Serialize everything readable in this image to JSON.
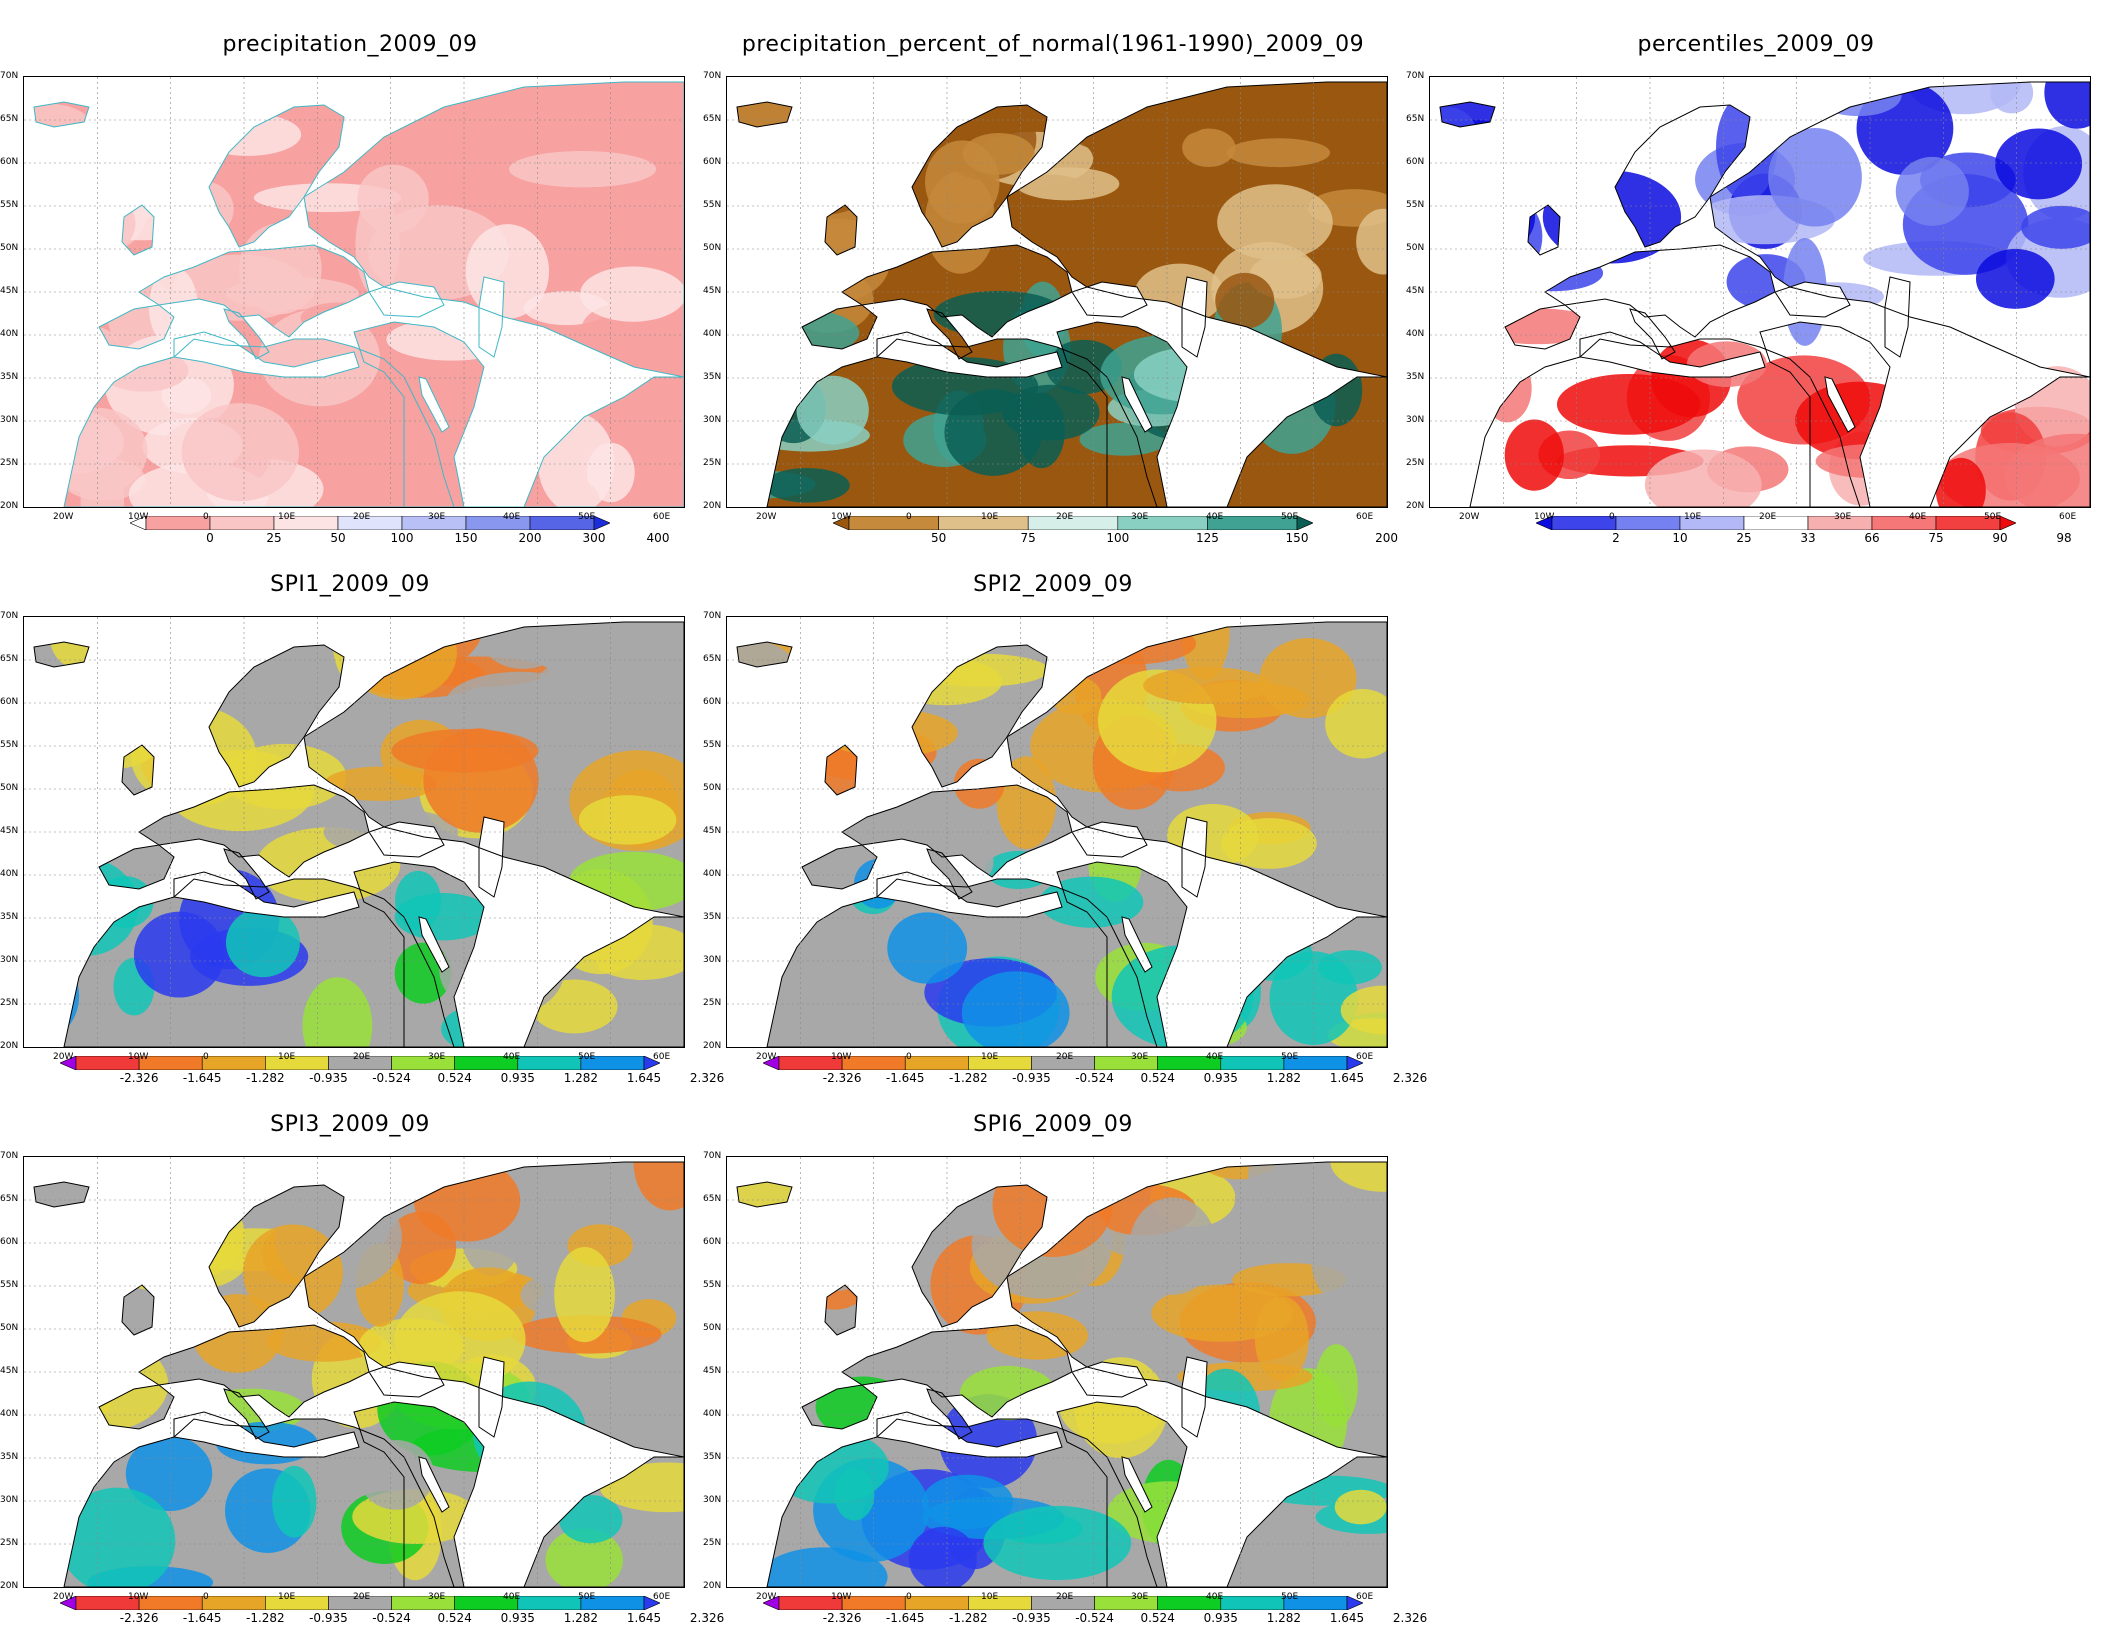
{
  "panels": [
    {
      "id": "precip",
      "title": "precipitation_2009_09",
      "scheme": "precip",
      "colorbar": {
        "labels": [
          "0",
          "25",
          "50",
          "100",
          "150",
          "200",
          "300",
          "400"
        ],
        "colors": [
          "#ffffff",
          "#f7a1a1",
          "#f9c5c5",
          "#fde4e4",
          "#dfe3fb",
          "#b8c0f5",
          "#8a97ee",
          "#5565e6",
          "#1c2ddc"
        ],
        "end_arrow": "right"
      }
    },
    {
      "id": "percent",
      "title": "precipitation_percent_of_normal(1961-1990)_2009_09",
      "scheme": "percent",
      "colorbar": {
        "labels": [
          "50",
          "75",
          "100",
          "125",
          "150",
          "200"
        ],
        "colors": [
          "#995710",
          "#c58a3c",
          "#dfc08a",
          "#d7efe9",
          "#8ad0c2",
          "#3fa292",
          "#0b5e53"
        ],
        "end_arrow": "both"
      }
    },
    {
      "id": "percentiles",
      "title": "percentiles_2009_09",
      "scheme": "pct",
      "colorbar": {
        "labels": [
          "2",
          "10",
          "25",
          "33",
          "66",
          "75",
          "90",
          "98"
        ],
        "colors": [
          "#0b0cdf",
          "#3c44ea",
          "#7581f0",
          "#b3b9f6",
          "#ffffff",
          "#f7b0b0",
          "#f57777",
          "#f23f3f",
          "#ee0b0b"
        ],
        "end_arrow": "both"
      }
    },
    {
      "id": "spi1",
      "title": "SPI1_2009_09",
      "scheme": "spi",
      "colorbar": {
        "labels": [
          "-2.326",
          "-1.645",
          "-1.282",
          "-0.935",
          "-0.524",
          "0.524",
          "0.935",
          "1.282",
          "1.645",
          "2.326"
        ],
        "colors": [
          "#a100e6",
          "#f03a3a",
          "#f07a28",
          "#e7a528",
          "#e6d93c",
          "#a8a8a8",
          "#99e13a",
          "#0ecd22",
          "#10c5b7",
          "#0f92e6",
          "#2a3bef"
        ],
        "end_arrow": "both"
      }
    },
    {
      "id": "spi2",
      "title": "SPI2_2009_09",
      "scheme": "spi",
      "colorbar": {
        "labels": [
          "-2.326",
          "-1.645",
          "-1.282",
          "-0.935",
          "-0.524",
          "0.524",
          "0.935",
          "1.282",
          "1.645",
          "2.326"
        ],
        "colors": [
          "#a100e6",
          "#f03a3a",
          "#f07a28",
          "#e7a528",
          "#e6d93c",
          "#a8a8a8",
          "#99e13a",
          "#0ecd22",
          "#10c5b7",
          "#0f92e6",
          "#2a3bef"
        ],
        "end_arrow": "both"
      }
    },
    {
      "id": "spi3",
      "title": "SPI3_2009_09",
      "scheme": "spi",
      "colorbar": {
        "labels": [
          "-2.326",
          "-1.645",
          "-1.282",
          "-0.935",
          "-0.524",
          "0.524",
          "0.935",
          "1.282",
          "1.645",
          "2.326"
        ],
        "colors": [
          "#a100e6",
          "#f03a3a",
          "#f07a28",
          "#e7a528",
          "#e6d93c",
          "#a8a8a8",
          "#99e13a",
          "#0ecd22",
          "#10c5b7",
          "#0f92e6",
          "#2a3bef"
        ],
        "end_arrow": "both"
      }
    },
    {
      "id": "spi6",
      "title": "SPI6_2009_09",
      "scheme": "spi",
      "colorbar": {
        "labels": [
          "-2.326",
          "-1.645",
          "-1.282",
          "-0.935",
          "-0.524",
          "0.524",
          "0.935",
          "1.282",
          "1.645",
          "2.326"
        ],
        "colors": [
          "#a100e6",
          "#f03a3a",
          "#f07a28",
          "#e7a528",
          "#e6d93c",
          "#a8a8a8",
          "#99e13a",
          "#0ecd22",
          "#10c5b7",
          "#0f92e6",
          "#2a3bef"
        ],
        "end_arrow": "both"
      }
    }
  ],
  "axes": {
    "lat_labels": [
      "70N",
      "65N",
      "60N",
      "55N",
      "50N",
      "45N",
      "40N",
      "35N",
      "30N",
      "25N",
      "20N"
    ],
    "lon_labels": [
      "20W",
      "10W",
      "0",
      "10E",
      "20E",
      "30E",
      "40E",
      "50E",
      "60E"
    ]
  }
}
